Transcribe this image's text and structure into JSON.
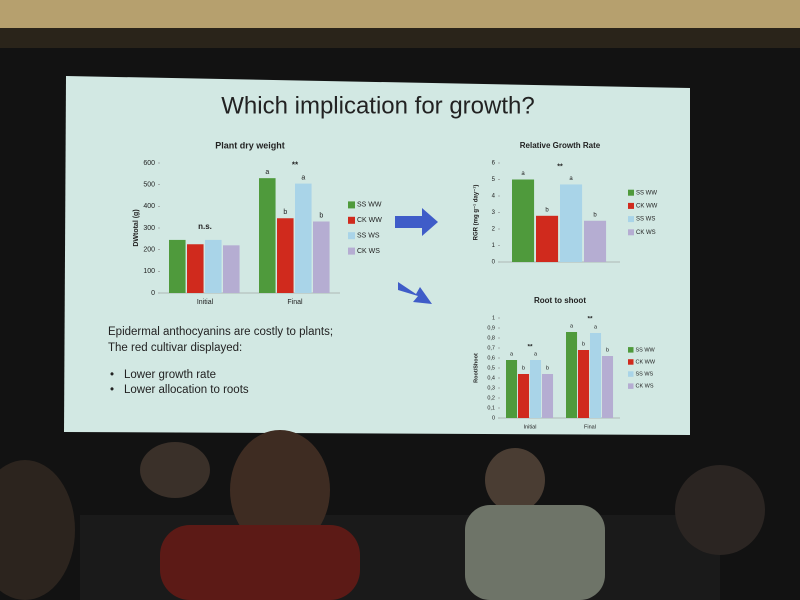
{
  "slide": {
    "title": "Which implication for growth?",
    "text_lines": [
      "Epidermal anthocyanins are costly to plants;",
      "The red cultivar displayed:"
    ],
    "bullets": [
      "Lower growth rate",
      "Lower allocation to roots"
    ]
  },
  "chart_data": [
    {
      "type": "bar",
      "title": "Plant dry weight",
      "y_label": "DWtotal (g)",
      "categories": [
        "Initial",
        "Final"
      ],
      "group_labels": [
        "n.s.",
        "**"
      ],
      "ylim": [
        0,
        600
      ],
      "yticks": [
        0,
        100,
        200,
        300,
        400,
        500,
        600
      ],
      "legend": "right",
      "series": [
        {
          "name": "SS WW",
          "color": "#4f9a3c",
          "values": [
            245,
            530
          ],
          "letters": [
            null,
            "a"
          ]
        },
        {
          "name": "CK WW",
          "color": "#d02a1d",
          "values": [
            225,
            345
          ],
          "letters": [
            null,
            "b"
          ]
        },
        {
          "name": "SS WS",
          "color": "#a9d4e8",
          "values": [
            245,
            505
          ],
          "letters": [
            null,
            "a"
          ]
        },
        {
          "name": "CK WS",
          "color": "#b5add2",
          "values": [
            220,
            330
          ],
          "letters": [
            null,
            "b"
          ]
        }
      ]
    },
    {
      "type": "bar",
      "title": "Relative Growth Rate",
      "y_label": "RGR (mg g⁻¹ day⁻¹)",
      "categories": [
        null
      ],
      "group_labels": [
        "**"
      ],
      "ylim": [
        0,
        6
      ],
      "yticks": [
        0,
        1,
        2,
        3,
        4,
        5,
        6
      ],
      "legend": "right",
      "series": [
        {
          "name": "SS WW",
          "color": "#4f9a3c",
          "values": [
            5
          ],
          "letters": [
            "a"
          ]
        },
        {
          "name": "CK WW",
          "color": "#d02a1d",
          "values": [
            2.8
          ],
          "letters": [
            "b"
          ]
        },
        {
          "name": "SS WS",
          "color": "#a9d4e8",
          "values": [
            4.7
          ],
          "letters": [
            "a"
          ]
        },
        {
          "name": "CK WS",
          "color": "#b5add2",
          "values": [
            2.5
          ],
          "letters": [
            "b"
          ]
        }
      ]
    },
    {
      "type": "bar",
      "title": "Root to shoot",
      "y_label": "Root/Shoot",
      "categories": [
        "Initial",
        "Final"
      ],
      "group_labels": [
        "**",
        "**"
      ],
      "ylim": [
        0,
        1
      ],
      "legend": "right",
      "yticks": [
        0,
        {
          "value": 0.1,
          "label": "0,1"
        },
        {
          "value": 0.2,
          "label": "0,2"
        },
        {
          "value": 0.3,
          "label": "0,3"
        },
        {
          "value": 0.4,
          "label": "0,4"
        },
        {
          "value": 0.5,
          "label": "0,5"
        },
        {
          "value": 0.6,
          "label": "0,6"
        },
        {
          "value": 0.7,
          "label": "0,7"
        },
        {
          "value": 0.8,
          "label": "0,8"
        },
        {
          "value": 0.9,
          "label": "0,9"
        },
        1
      ],
      "series": [
        {
          "name": "SS WW",
          "color": "#4f9a3c",
          "values": [
            0.58,
            0.86
          ],
          "letters": [
            "a",
            "a"
          ]
        },
        {
          "name": "CK WW",
          "color": "#d02a1d",
          "values": [
            0.44,
            0.68
          ],
          "letters": [
            "b",
            "b"
          ]
        },
        {
          "name": "SS WS",
          "color": "#a9d4e8",
          "values": [
            0.58,
            0.85
          ],
          "letters": [
            "a",
            "a"
          ]
        },
        {
          "name": "CK WS",
          "color": "#b5add2",
          "values": [
            0.44,
            0.62
          ],
          "letters": [
            "b",
            "b"
          ]
        }
      ]
    }
  ]
}
